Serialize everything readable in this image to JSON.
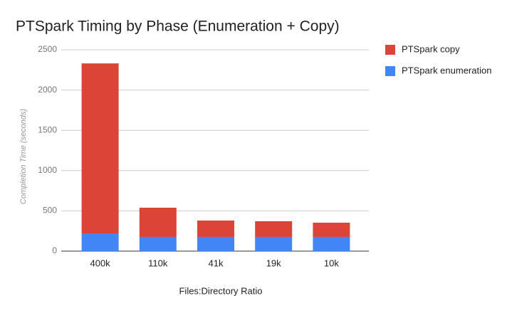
{
  "chart_data": {
    "type": "stacked_bar",
    "title": "PTSpark Timing by Phase (Enumeration + Copy)",
    "x_label": "Files:Directory Ratio",
    "y_label": "Completion Time (seconds)",
    "categories": [
      "400k",
      "110k",
      "41k",
      "19k",
      "10k"
    ],
    "series": [
      {
        "name": "PTSpark copy",
        "color": "#db4437",
        "values": [
          2110,
          362,
          203,
          194,
          176
        ]
      },
      {
        "name": "PTSpark enumeration",
        "color": "#4285f4",
        "values": [
          221,
          177,
          177,
          177,
          177
        ]
      }
    ],
    "ylim": [
      0,
      2500
    ],
    "yticks": [
      0,
      500,
      1000,
      1500,
      2000,
      2500
    ],
    "grid": true,
    "legend": "right"
  }
}
